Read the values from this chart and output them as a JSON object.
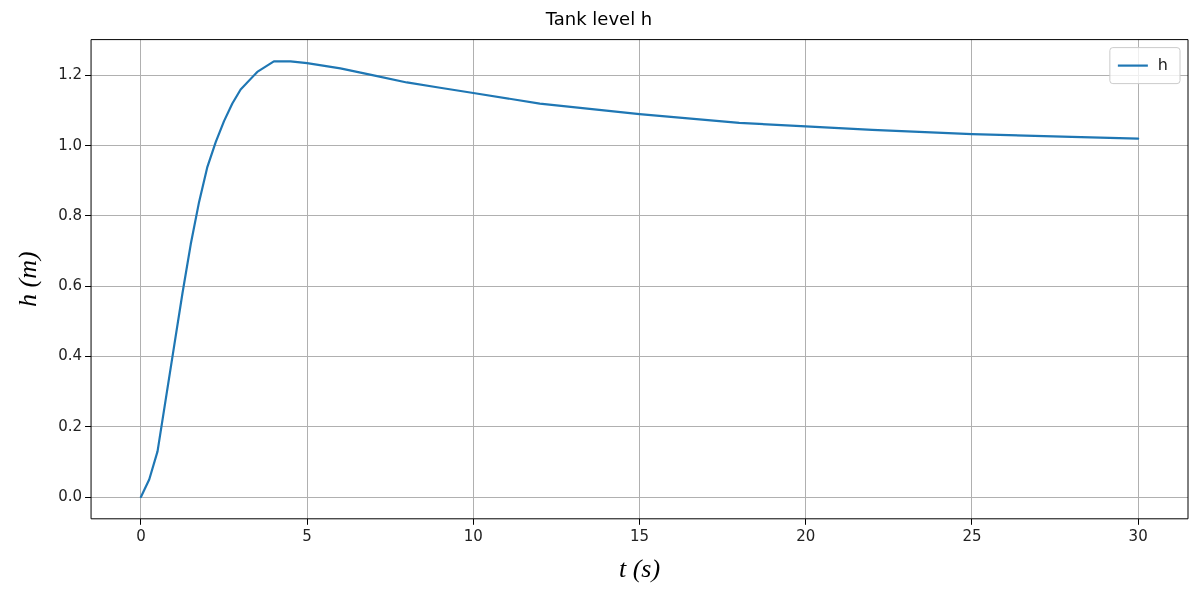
{
  "chart_data": {
    "type": "line",
    "title": "Tank level h",
    "xlabel": "t (s)",
    "ylabel": "h (m)",
    "x": [
      0,
      0.25,
      0.5,
      0.75,
      1,
      1.25,
      1.5,
      1.75,
      2,
      2.25,
      2.5,
      2.75,
      3,
      3.5,
      4,
      4.5,
      5,
      6,
      7,
      8,
      9,
      10,
      12,
      14,
      15,
      18,
      20,
      22,
      25,
      28,
      30
    ],
    "series": [
      {
        "name": "h",
        "color": "#1f77b4",
        "values": [
          0,
          0.05,
          0.13,
          0.28,
          0.43,
          0.58,
          0.72,
          0.84,
          0.94,
          1.01,
          1.07,
          1.12,
          1.16,
          1.21,
          1.24,
          1.24,
          1.235,
          1.22,
          1.2,
          1.18,
          1.165,
          1.15,
          1.12,
          1.1,
          1.09,
          1.065,
          1.055,
          1.045,
          1.033,
          1.025,
          1.02
        ]
      }
    ],
    "xlim": [
      -1.5,
      31.5
    ],
    "xticks": [
      0,
      5,
      10,
      15,
      20,
      25,
      30
    ],
    "ylim": [
      -0.062,
      1.302
    ],
    "yticks": [
      {
        "value": 0,
        "label": "0.0"
      },
      {
        "value": 0.2,
        "label": "0.2"
      },
      {
        "value": 0.4,
        "label": "0.4"
      },
      {
        "value": 0.6,
        "label": "0.6"
      },
      {
        "value": 0.8,
        "label": "0.8"
      },
      {
        "value": 1,
        "label": "1.0"
      },
      {
        "value": 1.2,
        "label": "1.2"
      }
    ],
    "grid": true,
    "legend": "top right",
    "marker": "none",
    "line_style": "solid"
  }
}
